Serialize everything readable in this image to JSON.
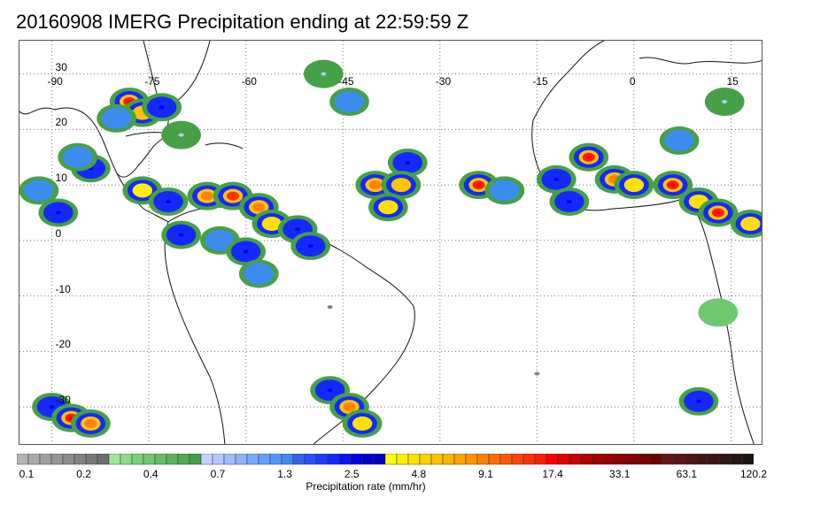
{
  "title": "20160908 IMERG Precipitation ending at 22:59:59 Z",
  "map": {
    "lon_range": [
      -95,
      20
    ],
    "lat_range": [
      -37,
      36
    ],
    "lon_ticks": [
      {
        "value": -90,
        "label": "-90"
      },
      {
        "value": -75,
        "label": "-75"
      },
      {
        "value": -60,
        "label": "-60"
      },
      {
        "value": -45,
        "label": "-45"
      },
      {
        "value": -30,
        "label": "-30"
      },
      {
        "value": -15,
        "label": "-15"
      },
      {
        "value": 0,
        "label": "0"
      },
      {
        "value": 15,
        "label": "15"
      }
    ],
    "lat_ticks": [
      {
        "value": 30,
        "label": "30"
      },
      {
        "value": 20,
        "label": "20"
      },
      {
        "value": 10,
        "label": "10"
      },
      {
        "value": 0,
        "label": "0"
      },
      {
        "value": -10,
        "label": "-10"
      },
      {
        "value": -20,
        "label": "-20"
      },
      {
        "value": -30,
        "label": "-30"
      }
    ],
    "grid": "dotted"
  },
  "colorbar": {
    "title": "Precipitation rate (mm/hr)",
    "tick_labels": [
      "0.1",
      "0.2",
      "0.4",
      "0.7",
      "1.3",
      "2.5",
      "4.8",
      "9.1",
      "17.4",
      "33.1",
      "63.1",
      "120.2"
    ],
    "colors": [
      "#b4b4b4",
      "#aaaaaa",
      "#a0a0a0",
      "#969696",
      "#8c8c8c",
      "#828282",
      "#787878",
      "#6e6e6e",
      "#a0e6a0",
      "#8cdc8c",
      "#78d278",
      "#6ec86e",
      "#64be64",
      "#5ab45a",
      "#50aa50",
      "#46a046",
      "#c8d2ff",
      "#b4c8ff",
      "#a0beff",
      "#8cb4ff",
      "#78aaff",
      "#64a0ff",
      "#5096ff",
      "#3c8cf0",
      "#3264f0",
      "#2850ff",
      "#1e3cff",
      "#1428ff",
      "#0a14f0",
      "#0000e6",
      "#0000d2",
      "#0000be",
      "#ffff00",
      "#fff000",
      "#ffe100",
      "#ffd200",
      "#ffc300",
      "#ffb400",
      "#ffa500",
      "#ff9600",
      "#ff8200",
      "#ff6e00",
      "#ff5a00",
      "#ff4600",
      "#ff3200",
      "#ff1e00",
      "#ff0000",
      "#e60000",
      "#c80000",
      "#b40000",
      "#a00000",
      "#960000",
      "#8c0000",
      "#820000",
      "#780000",
      "#6e0000",
      "#641414",
      "#5a1414",
      "#501414",
      "#461414",
      "#3c1414",
      "#321414",
      "#281414",
      "#1e1414"
    ]
  },
  "precip_cells": [
    {
      "lon": -78,
      "lat": 25,
      "rate": 18.0
    },
    {
      "lon": -76,
      "lat": 23,
      "rate": 6.0
    },
    {
      "lon": -73,
      "lat": 24,
      "rate": 2.5
    },
    {
      "lon": -80,
      "lat": 22,
      "rate": 1.3
    },
    {
      "lon": -70,
      "lat": 19,
      "rate": 0.7
    },
    {
      "lon": -84,
      "lat": 13,
      "rate": 2.5
    },
    {
      "lon": -86,
      "lat": 15,
      "rate": 1.3
    },
    {
      "lon": -92,
      "lat": 9,
      "rate": 1.3
    },
    {
      "lon": -89,
      "lat": 5,
      "rate": 2.5
    },
    {
      "lon": -76,
      "lat": 9,
      "rate": 4.0
    },
    {
      "lon": -72,
      "lat": 7,
      "rate": 2.5
    },
    {
      "lon": -66,
      "lat": 8,
      "rate": 9.0
    },
    {
      "lon": -62,
      "lat": 8,
      "rate": 14.0
    },
    {
      "lon": -58,
      "lat": 6,
      "rate": 9.0
    },
    {
      "lon": -56,
      "lat": 3,
      "rate": 4.8
    },
    {
      "lon": -52,
      "lat": 2,
      "rate": 2.5
    },
    {
      "lon": -50,
      "lat": -1,
      "rate": 2.5
    },
    {
      "lon": -70,
      "lat": 1,
      "rate": 2.5
    },
    {
      "lon": -64,
      "lat": 0,
      "rate": 1.3
    },
    {
      "lon": -60,
      "lat": -2,
      "rate": 2.5
    },
    {
      "lon": -58,
      "lat": -6,
      "rate": 1.3
    },
    {
      "lon": -48,
      "lat": 30,
      "rate": 0.7
    },
    {
      "lon": -44,
      "lat": 25,
      "rate": 1.3
    },
    {
      "lon": -35,
      "lat": 14,
      "rate": 2.5
    },
    {
      "lon": -40,
      "lat": 10,
      "rate": 9.0
    },
    {
      "lon": -36,
      "lat": 10,
      "rate": 6.0
    },
    {
      "lon": -38,
      "lat": 6,
      "rate": 4.8
    },
    {
      "lon": -24,
      "lat": 10,
      "rate": 17.0
    },
    {
      "lon": -20,
      "lat": 9,
      "rate": 1.3
    },
    {
      "lon": -7,
      "lat": 15,
      "rate": 17.0
    },
    {
      "lon": -12,
      "lat": 11,
      "rate": 2.5
    },
    {
      "lon": -3,
      "lat": 11,
      "rate": 9.0
    },
    {
      "lon": 0,
      "lat": 10,
      "rate": 4.8
    },
    {
      "lon": -10,
      "lat": 7,
      "rate": 2.5
    },
    {
      "lon": 6,
      "lat": 10,
      "rate": 17.0
    },
    {
      "lon": 10,
      "lat": 7,
      "rate": 4.8
    },
    {
      "lon": 13,
      "lat": 5,
      "rate": 17.0
    },
    {
      "lon": 18,
      "lat": 3,
      "rate": 4.8
    },
    {
      "lon": 7,
      "lat": 18,
      "rate": 1.3
    },
    {
      "lon": 14,
      "lat": 25,
      "rate": 0.7
    },
    {
      "lon": -90,
      "lat": -30,
      "rate": 2.5
    },
    {
      "lon": -87,
      "lat": -32,
      "rate": 17.0
    },
    {
      "lon": -84,
      "lat": -33,
      "rate": 9.0
    },
    {
      "lon": -47,
      "lat": -27,
      "rate": 2.5
    },
    {
      "lon": -44,
      "lat": -30,
      "rate": 9.0
    },
    {
      "lon": -42,
      "lat": -33,
      "rate": 4.8
    },
    {
      "lon": 10,
      "lat": -29,
      "rate": 2.5
    },
    {
      "lon": 13,
      "lat": -13,
      "rate": 0.4
    },
    {
      "lon": -47,
      "lat": -12,
      "rate": 0.2
    },
    {
      "lon": -15,
      "lat": -24,
      "rate": 0.2
    }
  ]
}
